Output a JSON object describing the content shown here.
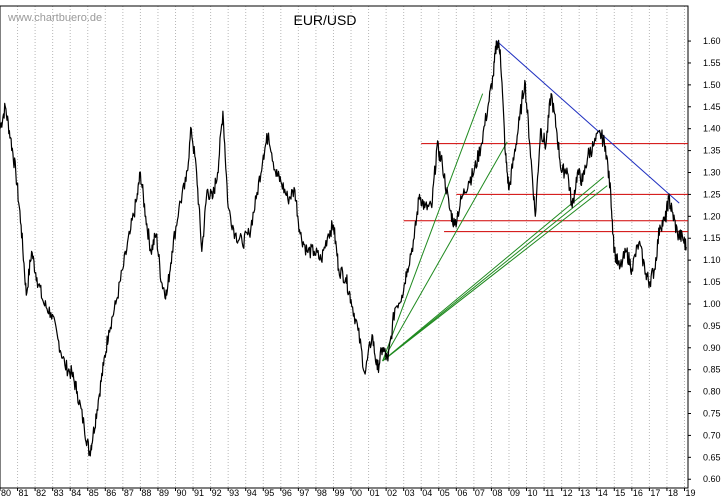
{
  "watermark": "www.chartbuero.de",
  "chart_data": {
    "type": "line",
    "title": "EUR/USD",
    "xlabel": "",
    "ylabel": "",
    "xlim": [
      1980,
      2019.2
    ],
    "ylim": [
      0.58,
      1.68
    ],
    "grid": "vertical-dotted",
    "y_ticks": [
      0.6,
      0.65,
      0.7,
      0.75,
      0.8,
      0.85,
      0.9,
      0.95,
      1.0,
      1.05,
      1.1,
      1.15,
      1.2,
      1.25,
      1.3,
      1.35,
      1.4,
      1.45,
      1.5,
      1.55,
      1.6
    ],
    "x_tick_labels": [
      "80",
      "81",
      "82",
      "83",
      "84",
      "85",
      "86",
      "87",
      "88",
      "89",
      "90",
      "91",
      "92",
      "93",
      "94",
      "95",
      "96",
      "97",
      "98",
      "99",
      "00",
      "01",
      "02",
      "03",
      "04",
      "05",
      "06",
      "07",
      "08",
      "09",
      "10",
      "11",
      "12",
      "13",
      "14",
      "15",
      "16",
      "17",
      "18",
      "19"
    ],
    "series": [
      {
        "color": "#000000",
        "points": [
          [
            1980.0,
            1.4
          ],
          [
            1980.3,
            1.45
          ],
          [
            1980.6,
            1.38
          ],
          [
            1980.9,
            1.3
          ],
          [
            1981.2,
            1.18
          ],
          [
            1981.5,
            1.02
          ],
          [
            1981.8,
            1.12
          ],
          [
            1982.1,
            1.06
          ],
          [
            1982.5,
            1.0
          ],
          [
            1982.9,
            0.98
          ],
          [
            1983.3,
            0.92
          ],
          [
            1983.7,
            0.86
          ],
          [
            1984.1,
            0.84
          ],
          [
            1984.4,
            0.8
          ],
          [
            1984.8,
            0.72
          ],
          [
            1985.1,
            0.66
          ],
          [
            1985.3,
            0.7
          ],
          [
            1985.6,
            0.78
          ],
          [
            1985.9,
            0.86
          ],
          [
            1986.2,
            0.94
          ],
          [
            1986.6,
            1.0
          ],
          [
            1987.0,
            1.08
          ],
          [
            1987.4,
            1.16
          ],
          [
            1987.8,
            1.24
          ],
          [
            1988.0,
            1.3
          ],
          [
            1988.3,
            1.2
          ],
          [
            1988.6,
            1.12
          ],
          [
            1988.9,
            1.16
          ],
          [
            1989.2,
            1.05
          ],
          [
            1989.5,
            1.02
          ],
          [
            1989.8,
            1.12
          ],
          [
            1990.2,
            1.22
          ],
          [
            1990.6,
            1.28
          ],
          [
            1990.9,
            1.4
          ],
          [
            1991.2,
            1.3
          ],
          [
            1991.5,
            1.12
          ],
          [
            1991.8,
            1.26
          ],
          [
            1992.1,
            1.24
          ],
          [
            1992.4,
            1.3
          ],
          [
            1992.7,
            1.44
          ],
          [
            1993.0,
            1.22
          ],
          [
            1993.4,
            1.16
          ],
          [
            1993.8,
            1.14
          ],
          [
            1994.2,
            1.16
          ],
          [
            1994.6,
            1.24
          ],
          [
            1995.0,
            1.34
          ],
          [
            1995.3,
            1.39
          ],
          [
            1995.7,
            1.3
          ],
          [
            1996.0,
            1.28
          ],
          [
            1996.4,
            1.24
          ],
          [
            1996.8,
            1.26
          ],
          [
            1997.1,
            1.16
          ],
          [
            1997.5,
            1.12
          ],
          [
            1997.9,
            1.12
          ],
          [
            1998.3,
            1.1
          ],
          [
            1998.7,
            1.16
          ],
          [
            1999.0,
            1.18
          ],
          [
            1999.3,
            1.08
          ],
          [
            1999.7,
            1.06
          ],
          [
            2000.0,
            1.01
          ],
          [
            2000.4,
            0.94
          ],
          [
            2000.8,
            0.84
          ],
          [
            2001.2,
            0.93
          ],
          [
            2001.5,
            0.85
          ],
          [
            2001.8,
            0.9
          ],
          [
            2002.1,
            0.87
          ],
          [
            2002.5,
            0.99
          ],
          [
            2002.9,
            1.02
          ],
          [
            2003.2,
            1.08
          ],
          [
            2003.6,
            1.15
          ],
          [
            2003.9,
            1.25
          ],
          [
            2004.2,
            1.22
          ],
          [
            2004.6,
            1.22
          ],
          [
            2004.9,
            1.36
          ],
          [
            2005.2,
            1.32
          ],
          [
            2005.6,
            1.22
          ],
          [
            2005.9,
            1.18
          ],
          [
            2006.3,
            1.24
          ],
          [
            2006.7,
            1.28
          ],
          [
            2007.0,
            1.3
          ],
          [
            2007.4,
            1.36
          ],
          [
            2007.8,
            1.45
          ],
          [
            2008.1,
            1.52
          ],
          [
            2008.3,
            1.6
          ],
          [
            2008.5,
            1.58
          ],
          [
            2008.8,
            1.34
          ],
          [
            2009.0,
            1.26
          ],
          [
            2009.3,
            1.34
          ],
          [
            2009.6,
            1.42
          ],
          [
            2009.9,
            1.51
          ],
          [
            2010.2,
            1.36
          ],
          [
            2010.5,
            1.2
          ],
          [
            2010.8,
            1.4
          ],
          [
            2011.1,
            1.36
          ],
          [
            2011.4,
            1.48
          ],
          [
            2011.7,
            1.4
          ],
          [
            2012.0,
            1.3
          ],
          [
            2012.3,
            1.31
          ],
          [
            2012.6,
            1.22
          ],
          [
            2012.9,
            1.3
          ],
          [
            2013.2,
            1.28
          ],
          [
            2013.5,
            1.34
          ],
          [
            2013.8,
            1.36
          ],
          [
            2014.2,
            1.39
          ],
          [
            2014.5,
            1.36
          ],
          [
            2014.8,
            1.25
          ],
          [
            2015.0,
            1.12
          ],
          [
            2015.3,
            1.08
          ],
          [
            2015.7,
            1.12
          ],
          [
            2016.0,
            1.08
          ],
          [
            2016.4,
            1.14
          ],
          [
            2016.8,
            1.07
          ],
          [
            2017.0,
            1.05
          ],
          [
            2017.3,
            1.08
          ],
          [
            2017.6,
            1.18
          ],
          [
            2017.9,
            1.19
          ],
          [
            2018.1,
            1.24
          ],
          [
            2018.3,
            1.21
          ],
          [
            2018.6,
            1.16
          ],
          [
            2018.9,
            1.15
          ],
          [
            2019.1,
            1.13
          ]
        ]
      }
    ],
    "annotations": {
      "resistance_lines": {
        "color": "#d00000",
        "lines": [
          {
            "x0": 2004.0,
            "x1": 2019.2,
            "y": 1.366
          },
          {
            "x0": 2006.0,
            "x1": 2019.2,
            "y": 1.25
          },
          {
            "x0": 2003.0,
            "x1": 2019.2,
            "y": 1.19
          },
          {
            "x0": 2005.3,
            "x1": 2019.2,
            "y": 1.165
          }
        ]
      },
      "downtrend_line": {
        "color": "#2030c0",
        "from": [
          2008.3,
          1.6
        ],
        "to": [
          2018.7,
          1.23
        ]
      },
      "fan_lines": {
        "color": "#1f8a1f",
        "origin": [
          2001.8,
          0.87
        ],
        "ends": [
          [
            2007.5,
            1.48
          ],
          [
            2008.9,
            1.37
          ],
          [
            2013.9,
            1.26
          ],
          [
            2014.4,
            1.29
          ],
          [
            2014.6,
            1.27
          ]
        ]
      }
    }
  }
}
